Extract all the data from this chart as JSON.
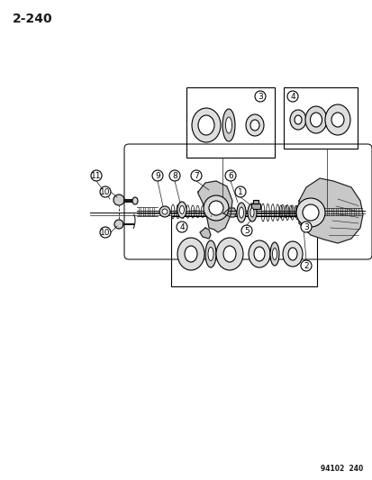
{
  "page_number": "2-240",
  "doc_number": "94102  240",
  "background_color": "#ffffff",
  "line_color": "#1a1a1a",
  "fig_width": 4.14,
  "fig_height": 5.33,
  "dpi": 100,
  "title_fontsize": 10,
  "label_fontsize": 6.5,
  "footnote_fontsize": 5.5
}
